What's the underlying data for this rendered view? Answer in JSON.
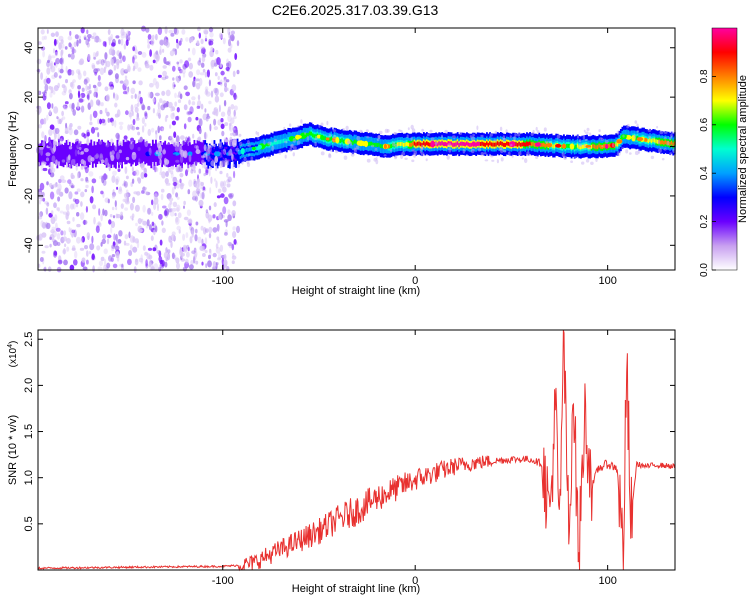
{
  "title": "C2E6.2025.317.03.39.G13",
  "chart_data": [
    {
      "type": "heatmap",
      "xlabel": "Height of straight line (km)",
      "ylabel": "Frequency (Hz)",
      "xlim": [
        -196,
        135
      ],
      "ylim": [
        -50,
        48
      ],
      "xticks": [
        -100,
        0,
        100
      ],
      "yticks": [
        -40,
        -20,
        0,
        20,
        40
      ],
      "colorbar": {
        "label": "Normalized spectral amplitude",
        "range": [
          0,
          1
        ],
        "ticks": [
          "0.0",
          "0.2",
          "0.4",
          "0.6",
          "0.8"
        ],
        "tick_values": [
          0,
          0.2,
          0.4,
          0.6,
          0.8
        ],
        "colors": [
          "#ffffff",
          "#c8a0f0",
          "#6a00ff",
          "#0000ff",
          "#00a0ff",
          "#00ffd0",
          "#00ff00",
          "#ffff00",
          "#ff8000",
          "#ff0000",
          "#ff00a0"
        ]
      },
      "ridge": {
        "heights": [
          -196,
          -150,
          -110,
          -95,
          -85,
          -75,
          -65,
          -55,
          -45,
          -35,
          -25,
          -15,
          -5,
          0,
          20,
          60,
          80,
          100,
          105,
          108,
          135
        ],
        "frequency": [
          -3,
          -3,
          -3,
          -3,
          -1,
          1,
          3,
          5,
          3,
          2,
          1,
          0,
          1,
          1,
          1,
          1,
          0,
          0,
          1,
          4,
          1
        ],
        "amplitude": [
          0.2,
          0.2,
          0.25,
          0.3,
          0.45,
          0.5,
          0.55,
          0.6,
          0.6,
          0.6,
          0.55,
          0.6,
          0.7,
          0.9,
          1.0,
          0.85,
          0.6,
          0.85,
          0.7,
          0.55,
          0.85
        ]
      },
      "noise_region": [
        -196,
        -92
      ]
    },
    {
      "type": "line",
      "xlabel": "Height of straight line (km)",
      "ylabel": "SNR (10 * v/v)",
      "yscale_label": "(x10",
      "yscale_exponent": "4",
      "xlim": [
        -196,
        135
      ],
      "ylim": [
        0,
        2.6
      ],
      "xticks": [
        -100,
        0,
        100
      ],
      "yticks": [
        0.5,
        1.0,
        1.5,
        2.0,
        2.5
      ],
      "ytick_labels": [
        "0.5",
        "1.0",
        "1.5",
        "2.0",
        "2.5"
      ],
      "color": "#e8312f",
      "series": {
        "name": "SNR",
        "x": [
          -196,
          -150,
          -100,
          -92,
          -85,
          -80,
          -70,
          -60,
          -50,
          -40,
          -30,
          -20,
          -10,
          0,
          10,
          20,
          30,
          40,
          50,
          60,
          66,
          70,
          73,
          75,
          77,
          80,
          82,
          85,
          88,
          92,
          95,
          100,
          105,
          108,
          110,
          112,
          115,
          120,
          125,
          130,
          135
        ],
        "y": [
          0.02,
          0.03,
          0.04,
          0.05,
          0.07,
          0.12,
          0.22,
          0.32,
          0.42,
          0.55,
          0.65,
          0.78,
          0.88,
          0.98,
          1.05,
          1.12,
          1.16,
          1.18,
          1.2,
          1.2,
          1.15,
          0.6,
          1.8,
          0.3,
          2.6,
          0.2,
          2.1,
          0.1,
          1.7,
          0.9,
          1.1,
          1.15,
          1.1,
          0.2,
          2.15,
          0.5,
          1.15,
          1.12,
          1.14,
          1.13,
          1.12
        ]
      }
    }
  ]
}
